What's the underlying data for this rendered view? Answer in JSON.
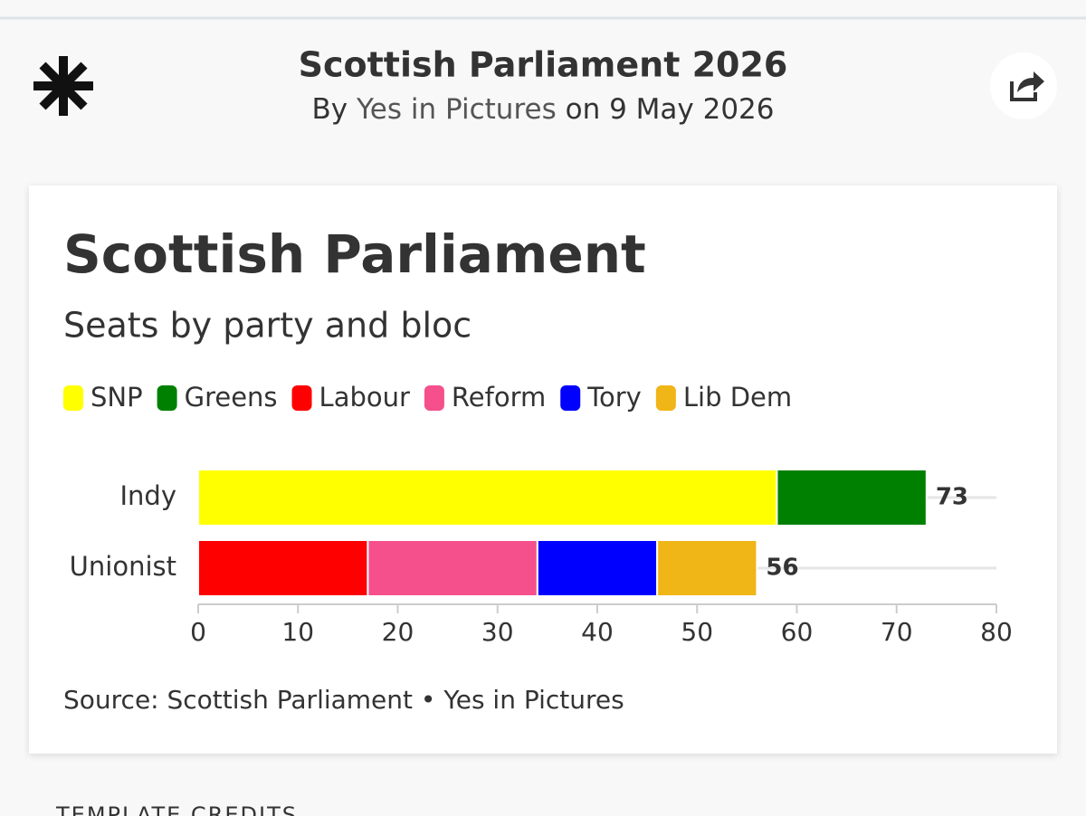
{
  "header": {
    "title": "Scottish Parliament 2026",
    "by": "By",
    "author": "Yes in Pictures",
    "date": "on 9 May 2026"
  },
  "chart_data": {
    "type": "stacked-bar-horizontal",
    "title": "Scottish Parliament",
    "subtitle": "Seats by party and bloc",
    "categories": [
      "Indy",
      "Unionist"
    ],
    "series": [
      {
        "name": "SNP",
        "color": "#ffff00",
        "values": [
          58,
          null
        ]
      },
      {
        "name": "Greens",
        "color": "#008000",
        "values": [
          15,
          null
        ]
      },
      {
        "name": "Labour",
        "color": "#ff0000",
        "values": [
          null,
          17
        ]
      },
      {
        "name": "Reform",
        "color": "#f5508c",
        "values": [
          null,
          17
        ]
      },
      {
        "name": "Tory",
        "color": "#0000ff",
        "values": [
          null,
          12
        ]
      },
      {
        "name": "Lib Dem",
        "color": "#f0b517",
        "values": [
          null,
          10
        ]
      }
    ],
    "totals": [
      73,
      56
    ],
    "xlim": [
      0,
      80
    ],
    "xticks": [
      0,
      10,
      20,
      30,
      40,
      50,
      60,
      70,
      80
    ],
    "grid": true,
    "source": "Source: Scottish Parliament • Yes in Pictures"
  },
  "footer": {
    "credits": "TEMPLATE CREDITS"
  }
}
